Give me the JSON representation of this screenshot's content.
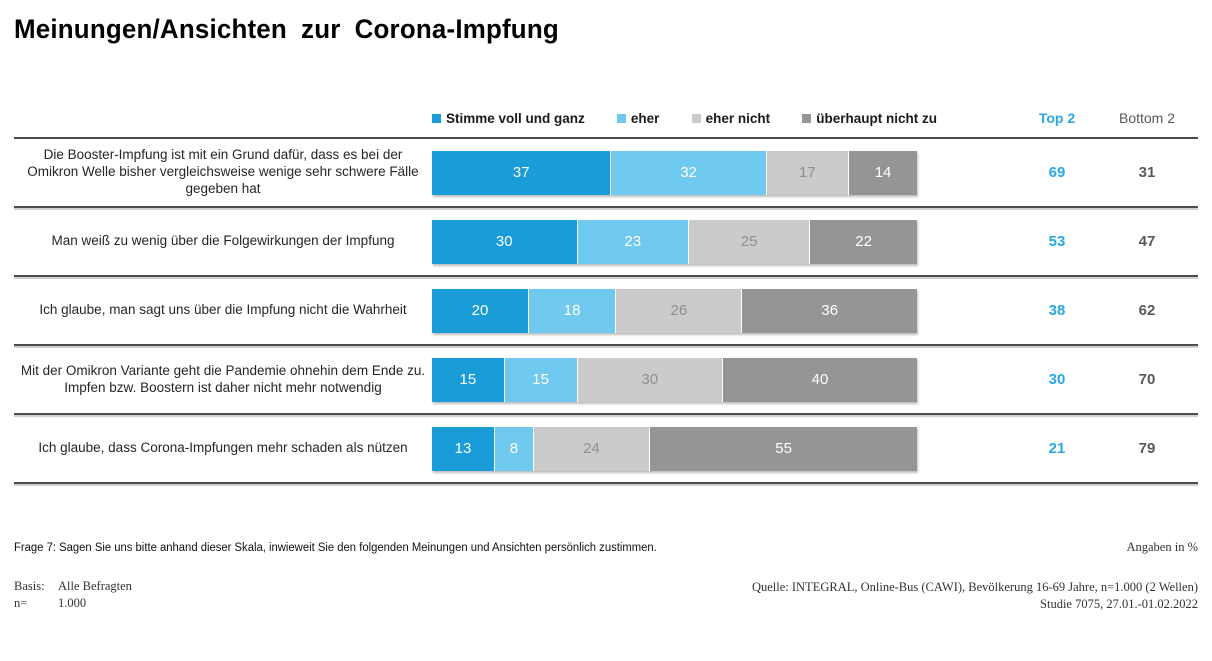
{
  "title": "Meinungen/Ansichten zur Corona-Impfung",
  "colors": {
    "agree_full": "#1a9cd8",
    "agree_some": "#70c9ee",
    "disagree_some": "#cbcbcb",
    "disagree_full": "#959595",
    "top2_text": "#29a9e1",
    "bottom2_text": "#595959"
  },
  "legend": [
    {
      "label": "Stimme voll und ganz",
      "color": "#1a9cd8"
    },
    {
      "label": "eher",
      "color": "#70c9ee"
    },
    {
      "label": "eher nicht",
      "color": "#cbcbcb"
    },
    {
      "label": "überhaupt nicht zu",
      "color": "#959595"
    }
  ],
  "columns": {
    "top2": "Top 2",
    "bottom2": "Bottom 2"
  },
  "chart_data": {
    "type": "bar",
    "orientation": "horizontal",
    "stacked": true,
    "unit": "%",
    "xlim": [
      0,
      100
    ],
    "categories": [
      "Die Booster-Impfung ist mit ein Grund dafür, dass es bei der Omikron Welle bisher vergleichsweise wenige sehr schwere Fälle gegeben hat",
      "Man weiß zu wenig über die Folgewirkungen der Impfung",
      "Ich glaube, man sagt uns über die Impfung nicht die Wahrheit",
      "Mit der Omikron Variante geht die Pandemie ohnehin dem Ende zu. Impfen bzw. Boostern ist daher nicht mehr notwendig",
      "Ich glaube, dass Corona-Impfungen mehr schaden als nützen"
    ],
    "series": [
      {
        "name": "Stimme voll und ganz",
        "color": "#1a9cd8",
        "values": [
          37,
          30,
          20,
          15,
          13
        ]
      },
      {
        "name": "eher",
        "color": "#70c9ee",
        "values": [
          32,
          23,
          18,
          15,
          8
        ]
      },
      {
        "name": "eher nicht",
        "color": "#cbcbcb",
        "values": [
          17,
          25,
          26,
          30,
          24
        ]
      },
      {
        "name": "überhaupt nicht zu",
        "color": "#959595",
        "values": [
          14,
          22,
          36,
          40,
          55
        ]
      }
    ],
    "top2": [
      69,
      53,
      38,
      30,
      21
    ],
    "bottom2": [
      31,
      47,
      62,
      70,
      79
    ]
  },
  "footer": {
    "question": "Frage 7: Sagen Sie uns bitte anhand dieser Skala, inwieweit Sie den folgenden Meinungen und Ansichten persönlich zustimmen.",
    "angaben": "Angaben in %",
    "basis_label": "Basis:",
    "basis_value": "Alle Befragten",
    "n_label": "n=",
    "n_value": "1.000",
    "source_line1": "Quelle: INTEGRAL, Online-Bus (CAWI),  Bevölkerung 16-69 Jahre, n=1.000 (2 Wellen)",
    "source_line2": "Studie 7075, 27.01.-01.02.2022"
  }
}
